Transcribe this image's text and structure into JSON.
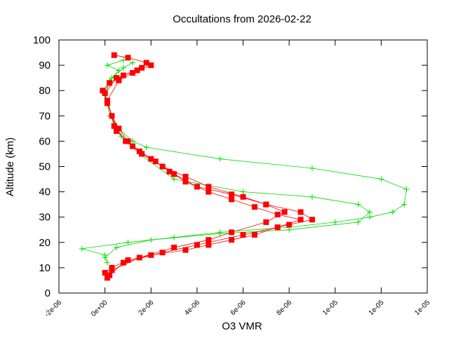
{
  "chart_data": {
    "type": "line",
    "title": "Occultations from 2026-02-22",
    "x_label": "O3 VMR",
    "y_label": "Altitude (km)",
    "xlim": [
      -2e-06,
      1.4e-05
    ],
    "ylim": [
      0,
      100
    ],
    "xticks": [
      {
        "value": -2e-06,
        "label": "-2e-06"
      },
      {
        "value": 0,
        "label": "0e+00"
      },
      {
        "value": 2e-06,
        "label": "2e-06"
      },
      {
        "value": 4e-06,
        "label": "4e-06"
      },
      {
        "value": 6e-06,
        "label": "6e-06"
      },
      {
        "value": 8e-06,
        "label": "8e-06"
      },
      {
        "value": 1e-05,
        "label": "1e-05"
      },
      {
        "value": 1.2e-05,
        "label": "1e-05"
      },
      {
        "value": 1.4e-05,
        "label": "1e-05"
      }
    ],
    "yticks": [
      0,
      10,
      20,
      30,
      40,
      50,
      60,
      70,
      80,
      90,
      100
    ],
    "series": [
      {
        "color": "#00dd00",
        "marker": "plus",
        "x": [
          1e-07,
          0,
          -1e-06,
          1e-06,
          3e-06,
          5e-06,
          8e-06,
          1e-05,
          1.15e-05,
          1.25e-05,
          1.3e-05,
          1.31e-05,
          1.2e-05,
          9e-06,
          5e-06,
          1.8e-06,
          1.2e-06,
          6e-07,
          2e-07,
          1e-07,
          0,
          3e-07,
          6e-07,
          1e-07,
          8e-07
        ],
        "values": [
          12,
          15,
          17.5,
          20,
          22,
          24,
          26,
          28,
          30,
          32,
          35,
          41,
          45,
          49.3,
          53,
          57.6,
          60,
          65,
          70,
          75,
          80,
          85,
          88,
          90,
          92
        ]
      },
      {
        "color": "#00dd00",
        "marker": "plus",
        "x": [
          0,
          5e-07,
          2e-06,
          5e-06,
          8e-06,
          1.1e-05,
          1.15e-05,
          1.1e-05,
          9e-06,
          6e-06,
          3e-06,
          1.5e-06,
          7e-07,
          3e-07,
          0,
          2e-07,
          8e-07,
          1.2e-06
        ],
        "values": [
          14,
          18,
          21,
          23.5,
          25,
          28,
          32,
          35,
          38,
          40,
          45,
          55,
          62,
          70,
          78,
          84,
          89,
          91
        ]
      },
      {
        "color": "#ff0000",
        "marker": "square",
        "x": [
          1e-07,
          0,
          3e-07,
          1e-06,
          2e-06,
          3.5e-06,
          4.5e-06,
          5.5e-06,
          6.5e-06,
          7.5e-06,
          8.5e-06,
          7.5e-06,
          6.5e-06,
          5.5e-06,
          4.5e-06,
          3.5e-06,
          2.8e-06,
          2.2e-06,
          1.5e-06,
          1e-06,
          6e-07,
          3e-07,
          1e-07,
          -1e-07,
          2e-07,
          8e-07,
          1.6e-06,
          1.8e-06,
          1e-06,
          4e-07
        ],
        "values": [
          6,
          8,
          10,
          13,
          15,
          17,
          19,
          21,
          23,
          26,
          29,
          31,
          34,
          37,
          40,
          44,
          48,
          52,
          56,
          60,
          65,
          70,
          75,
          80,
          83,
          86,
          89,
          91,
          93,
          94
        ]
      },
      {
        "color": "#ff0000",
        "marker": "square",
        "x": [
          2e-07,
          8e-07,
          2.5e-06,
          4e-06,
          6e-06,
          8e-06,
          9e-06,
          8.5e-06,
          7e-06,
          6e-06,
          4.5e-06,
          3.5e-06,
          2.5e-06,
          1.6e-06,
          9e-07,
          4e-07,
          0,
          5e-07,
          1.4e-06,
          2e-06
        ],
        "values": [
          7,
          12,
          16,
          19,
          23,
          27,
          29,
          32,
          35,
          38,
          42,
          46,
          50,
          55,
          60,
          66,
          79,
          85,
          88,
          90
        ]
      },
      {
        "color": "#ff0000",
        "marker": "square",
        "x": [
          3e-07,
          1.5e-06,
          3e-06,
          4.5e-06,
          5.5e-06,
          7e-06,
          7.8e-06,
          7e-06,
          5.5e-06,
          4e-06,
          3e-06,
          2e-06,
          1.2e-06,
          5e-07,
          1e-07,
          6e-07,
          1.2e-06
        ],
        "values": [
          9,
          14,
          18,
          21,
          24,
          28,
          32,
          35,
          39,
          42,
          47,
          53,
          58,
          64,
          76,
          84,
          87
        ]
      }
    ]
  }
}
